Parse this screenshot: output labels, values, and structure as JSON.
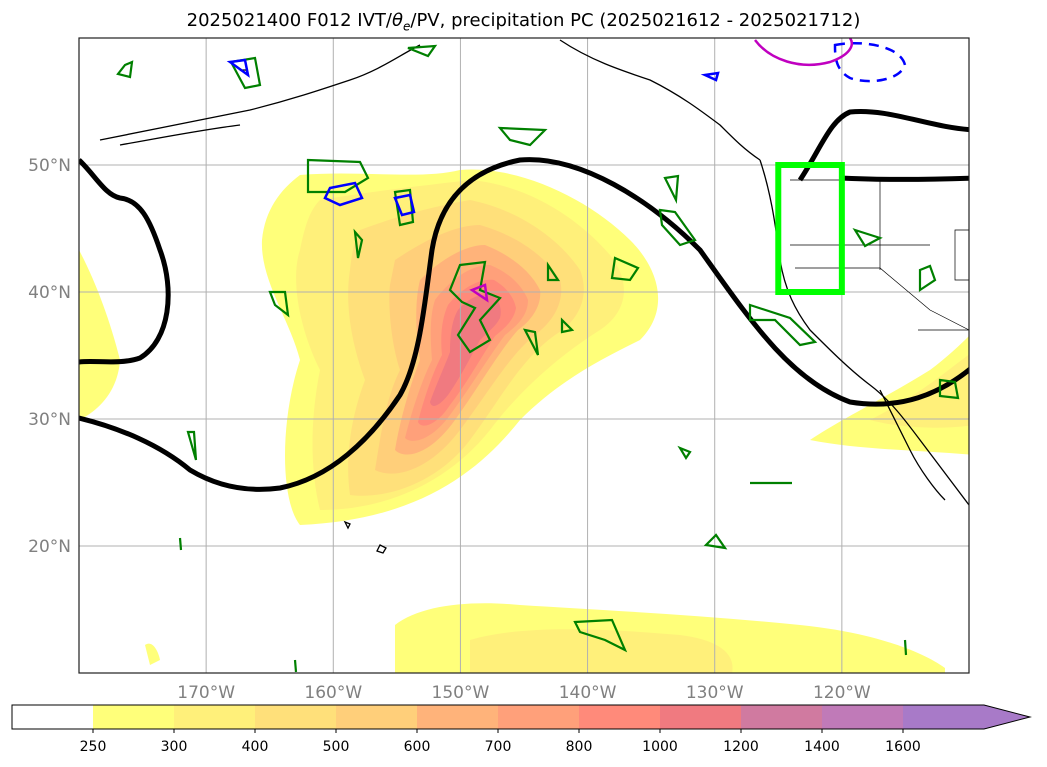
{
  "title": {
    "init": "2025021400 F012 IVT/",
    "theta": "θ",
    "sub": "e",
    "rest": "/PV, precipitation PC (2025021612 - 2025021712)"
  },
  "map": {
    "lon_range": [
      -180,
      -110
    ],
    "lat_range": [
      10,
      60
    ],
    "lat_ticks": [
      {
        "value": 20,
        "label": "20°N"
      },
      {
        "value": 30,
        "label": "30°N"
      },
      {
        "value": 40,
        "label": "40°N"
      },
      {
        "value": 50,
        "label": "50°N"
      }
    ],
    "lon_ticks": [
      {
        "value": -170,
        "label": "170°W"
      },
      {
        "value": -160,
        "label": "160°W"
      },
      {
        "value": -150,
        "label": "150°W"
      },
      {
        "value": -140,
        "label": "140°W"
      },
      {
        "value": -130,
        "label": "130°W"
      },
      {
        "value": -120,
        "label": "120°W"
      }
    ],
    "grid": true,
    "highlight_box": {
      "lon": [
        -125,
        -120
      ],
      "lat": [
        40,
        50
      ],
      "color": "#00ff00"
    },
    "contour_colors": {
      "theta_e": "#000000",
      "precip": "#008000",
      "pv_pos": "#0000ff",
      "pv_neg": "#c000c0"
    }
  },
  "colorbar": {
    "levels": [
      "250",
      "300",
      "400",
      "500",
      "600",
      "700",
      "800",
      "1000",
      "1200",
      "1400",
      "1600"
    ],
    "colors": [
      "#ffffff",
      "#ffff7a",
      "#fff07a",
      "#ffe07a",
      "#ffcf7a",
      "#ffb37a",
      "#ffa07a",
      "#ff8a7a",
      "#f07a80",
      "#d07aa0",
      "#c07ab8",
      "#a87ac8"
    ],
    "extend": "max"
  }
}
